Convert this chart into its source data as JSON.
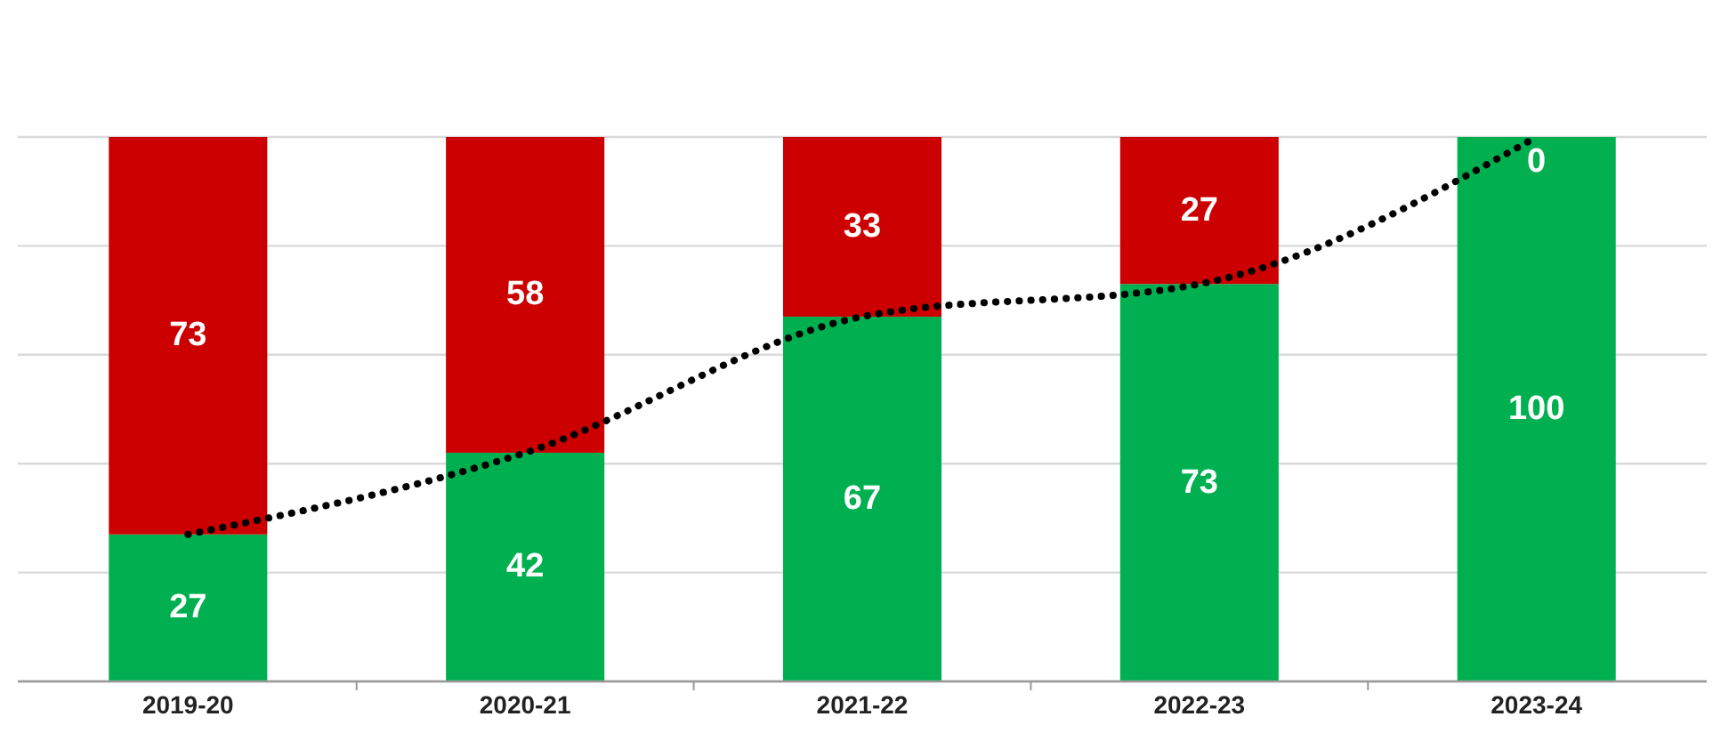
{
  "chart_data": {
    "type": "bar",
    "stacked": true,
    "categories": [
      "2019-20",
      "2020-21",
      "2021-22",
      "2022-23",
      "2023-24"
    ],
    "series": [
      {
        "color": "#00b050",
        "values": [
          27,
          42,
          67,
          73,
          100
        ],
        "value_labels": [
          "27",
          "42",
          "67",
          "73",
          "100"
        ]
      },
      {
        "color": "#cc0000",
        "values": [
          73,
          58,
          33,
          27,
          0
        ],
        "value_labels": [
          "73",
          "58",
          "33",
          "27",
          "0"
        ]
      },
      {
        "type": "line",
        "color": "#000000",
        "line_style": "dotted",
        "marker": "none",
        "values": [
          27,
          42,
          67,
          73,
          100
        ]
      }
    ],
    "ylim": [
      0,
      100
    ],
    "yticks": [
      {
        "value": 0,
        "label": null
      },
      {
        "value": 20,
        "label": null
      },
      {
        "value": 40,
        "label": null
      },
      {
        "value": 60,
        "label": null
      },
      {
        "value": 80,
        "label": null
      },
      {
        "value": 100,
        "label": null
      }
    ],
    "grid": "y",
    "tick_labels": "x"
  }
}
